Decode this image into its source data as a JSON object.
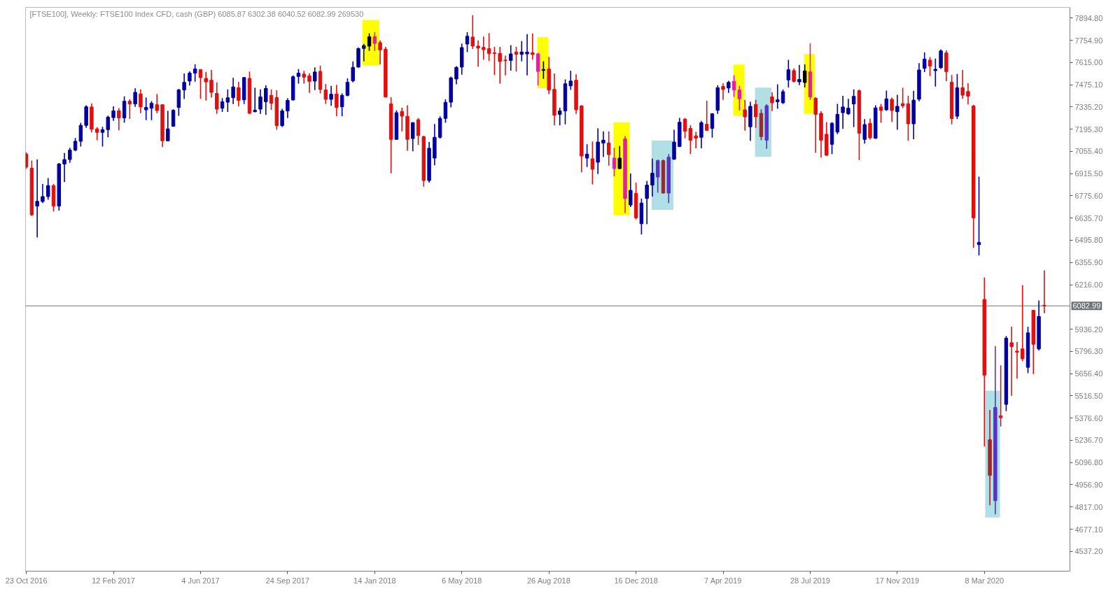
{
  "chart_data": {
    "type": "candlestick",
    "title": "[FTSE100], Weekly:  FTSE100 Index CFD, cash (GBP)  6085.87 6302.38 6040.52 6082.99  269530",
    "x": [
      "2016-10-23",
      "2016-10-30",
      "2016-11-06",
      "2016-11-13",
      "2016-11-20",
      "2016-11-27",
      "2016-12-04",
      "2016-12-11",
      "2016-12-18",
      "2016-12-25",
      "2017-01-01",
      "2017-01-08",
      "2017-01-15",
      "2017-01-22",
      "2017-01-29",
      "2017-02-05",
      "2017-02-12",
      "2017-02-19",
      "2017-02-26",
      "2017-03-05",
      "2017-03-12",
      "2017-03-19",
      "2017-03-26",
      "2017-04-02",
      "2017-04-09",
      "2017-04-16",
      "2017-04-23",
      "2017-04-30",
      "2017-05-07",
      "2017-05-14",
      "2017-05-21",
      "2017-05-28",
      "2017-06-04",
      "2017-06-11",
      "2017-06-18",
      "2017-06-25",
      "2017-07-02",
      "2017-07-09",
      "2017-07-16",
      "2017-07-23",
      "2017-07-30",
      "2017-08-06",
      "2017-08-13",
      "2017-08-20",
      "2017-08-27",
      "2017-09-03",
      "2017-09-10",
      "2017-09-17",
      "2017-09-24",
      "2017-10-01",
      "2017-10-08",
      "2017-10-15",
      "2017-10-22",
      "2017-10-29",
      "2017-11-05",
      "2017-11-12",
      "2017-11-19",
      "2017-11-26",
      "2017-12-03",
      "2017-12-10",
      "2017-12-17",
      "2017-12-24",
      "2017-12-31",
      "2018-01-07",
      "2018-01-14",
      "2018-01-21",
      "2018-01-28",
      "2018-02-04",
      "2018-02-11",
      "2018-02-18",
      "2018-02-25",
      "2018-03-04",
      "2018-03-11",
      "2018-03-18",
      "2018-03-25",
      "2018-04-01",
      "2018-04-08",
      "2018-04-15",
      "2018-04-22",
      "2018-04-29",
      "2018-05-06",
      "2018-05-13",
      "2018-05-20",
      "2018-05-27",
      "2018-06-03",
      "2018-06-10",
      "2018-06-17",
      "2018-06-24",
      "2018-07-01",
      "2018-07-08",
      "2018-07-15",
      "2018-07-22",
      "2018-07-29",
      "2018-08-05",
      "2018-08-12",
      "2018-08-19",
      "2018-08-26",
      "2018-09-02",
      "2018-09-09",
      "2018-09-16",
      "2018-09-23",
      "2018-09-30",
      "2018-10-07",
      "2018-10-14",
      "2018-10-21",
      "2018-10-28",
      "2018-11-04",
      "2018-11-11",
      "2018-11-18",
      "2018-11-25",
      "2018-12-02",
      "2018-12-09",
      "2018-12-16",
      "2018-12-23",
      "2018-12-30",
      "2019-01-06",
      "2019-01-13",
      "2019-01-20",
      "2019-01-27",
      "2019-02-03",
      "2019-02-10",
      "2019-02-17",
      "2019-02-24",
      "2019-03-03",
      "2019-03-10",
      "2019-03-17",
      "2019-03-24",
      "2019-03-31",
      "2019-04-07",
      "2019-04-14",
      "2019-04-21",
      "2019-04-28",
      "2019-05-05",
      "2019-05-12",
      "2019-05-19",
      "2019-05-26",
      "2019-06-02",
      "2019-06-09",
      "2019-06-16",
      "2019-06-23",
      "2019-06-30",
      "2019-07-07",
      "2019-07-14",
      "2019-07-21",
      "2019-07-28",
      "2019-08-04",
      "2019-08-11",
      "2019-08-18",
      "2019-08-25",
      "2019-09-01",
      "2019-09-08",
      "2019-09-15",
      "2019-09-22",
      "2019-09-29",
      "2019-10-06",
      "2019-10-13",
      "2019-10-20",
      "2019-10-27",
      "2019-11-03",
      "2019-11-10",
      "2019-11-17",
      "2019-11-24",
      "2019-12-01",
      "2019-12-08",
      "2019-12-15",
      "2019-12-22",
      "2019-12-29",
      "2020-01-05",
      "2020-01-12",
      "2020-01-19",
      "2020-01-26",
      "2020-02-02",
      "2020-02-09",
      "2020-02-16",
      "2020-02-23",
      "2020-03-01",
      "2020-03-08",
      "2020-03-15",
      "2020-03-22",
      "2020-03-29",
      "2020-04-05",
      "2020-04-12",
      "2020-04-19",
      "2020-04-26",
      "2020-05-03",
      "2020-05-10",
      "2020-05-17",
      "2020-05-24"
    ],
    "ohlc": [
      [
        7038,
        7045,
        6950,
        6957
      ],
      [
        6950,
        6994,
        6652,
        6656
      ],
      [
        6711,
        7001,
        6517,
        6741
      ],
      [
        6740,
        6847,
        6734,
        6771
      ],
      [
        6771,
        6884,
        6755,
        6840
      ],
      [
        6840,
        6847,
        6681,
        6711
      ],
      [
        6711,
        6979,
        6686,
        6976
      ],
      [
        6976,
        7042,
        6866,
        7004
      ],
      [
        7004,
        7075,
        6987,
        7064
      ],
      [
        7064,
        7136,
        7060,
        7119
      ],
      [
        7119,
        7232,
        7089,
        7219
      ],
      [
        7219,
        7342,
        7207,
        7336
      ],
      [
        7335,
        7354,
        7178,
        7195
      ],
      [
        7197,
        7204,
        7129,
        7175
      ],
      [
        7175,
        7207,
        7089,
        7192
      ],
      [
        7192,
        7277,
        7148,
        7271
      ],
      [
        7268,
        7335,
        7251,
        7310
      ],
      [
        7310,
        7324,
        7192,
        7266
      ],
      [
        7266,
        7398,
        7239,
        7371
      ],
      [
        7371,
        7380,
        7263,
        7354
      ],
      [
        7354,
        7449,
        7339,
        7427
      ],
      [
        7417,
        7442,
        7299,
        7336
      ],
      [
        7317,
        7390,
        7255,
        7332
      ],
      [
        7327,
        7368,
        7255,
        7358
      ],
      [
        7349,
        7412,
        7299,
        7313
      ],
      [
        7349,
        7349,
        7086,
        7122
      ],
      [
        7122,
        7307,
        7122,
        7197
      ],
      [
        7214,
        7317,
        7214,
        7314
      ],
      [
        7332,
        7446,
        7283,
        7442
      ],
      [
        7442,
        7542,
        7389,
        7490
      ],
      [
        7498,
        7556,
        7474,
        7548
      ],
      [
        7548,
        7600,
        7498,
        7574
      ],
      [
        7570,
        7570,
        7390,
        7520
      ],
      [
        7515,
        7552,
        7379,
        7493
      ],
      [
        7503,
        7564,
        7398,
        7427
      ],
      [
        7420,
        7486,
        7295,
        7321
      ],
      [
        7327,
        7387,
        7307,
        7368
      ],
      [
        7365,
        7442,
        7307,
        7393
      ],
      [
        7393,
        7515,
        7357,
        7461
      ],
      [
        7456,
        7490,
        7342,
        7376
      ],
      [
        7380,
        7520,
        7357,
        7520
      ],
      [
        7515,
        7555,
        7295,
        7295
      ],
      [
        7305,
        7452,
        7305,
        7314
      ],
      [
        7321,
        7442,
        7295,
        7398
      ],
      [
        7368,
        7467,
        7288,
        7452
      ],
      [
        7408,
        7442,
        7321,
        7358
      ],
      [
        7395,
        7437,
        7195,
        7217
      ],
      [
        7217,
        7320,
        7213,
        7310
      ],
      [
        7310,
        7386,
        7269,
        7376
      ],
      [
        7379,
        7530,
        7379,
        7525
      ],
      [
        7527,
        7570,
        7486,
        7548
      ],
      [
        7542,
        7559,
        7486,
        7523
      ],
      [
        7530,
        7545,
        7427,
        7496
      ],
      [
        7498,
        7581,
        7445,
        7555
      ],
      [
        7559,
        7592,
        7424,
        7445
      ],
      [
        7442,
        7476,
        7357,
        7383
      ],
      [
        7383,
        7464,
        7346,
        7415
      ],
      [
        7417,
        7471,
        7280,
        7332
      ],
      [
        7336,
        7417,
        7280,
        7408
      ],
      [
        7408,
        7511,
        7405,
        7490
      ],
      [
        7500,
        7618,
        7493,
        7584
      ],
      [
        7586,
        7706,
        7586,
        7702
      ],
      [
        7703,
        7728,
        7625,
        7721
      ],
      [
        7718,
        7794,
        7691,
        7777
      ],
      [
        7777,
        7802,
        7691,
        7735
      ],
      [
        7740,
        7750,
        7606,
        7694
      ],
      [
        7699,
        7710,
        7398,
        7398
      ],
      [
        7354,
        7393,
        6921,
        7131
      ],
      [
        7131,
        7310,
        7131,
        7299
      ],
      [
        7307,
        7327,
        7185,
        7277
      ],
      [
        7276,
        7342,
        7063,
        7131
      ],
      [
        7136,
        7236,
        7060,
        7236
      ],
      [
        7255,
        7263,
        7100,
        7155
      ],
      [
        7148,
        7151,
        6837,
        6872
      ],
      [
        6872,
        7111,
        6862,
        7075
      ],
      [
        7013,
        7224,
        6972,
        7144
      ],
      [
        7144,
        7273,
        7140,
        7263
      ],
      [
        7263,
        7379,
        7239,
        7364
      ],
      [
        7365,
        7523,
        7336,
        7518
      ],
      [
        7511,
        7589,
        7481,
        7584
      ],
      [
        7586,
        7731,
        7542,
        7709
      ],
      [
        7731,
        7802,
        7684,
        7780
      ],
      [
        7775,
        7909,
        7703,
        7718
      ],
      [
        7718,
        7750,
        7592,
        7706
      ],
      [
        7710,
        7775,
        7636,
        7696
      ],
      [
        7702,
        7797,
        7628,
        7672
      ],
      [
        7675,
        7710,
        7540,
        7672
      ],
      [
        7672,
        7710,
        7486,
        7621
      ],
      [
        7630,
        7655,
        7537,
        7627
      ],
      [
        7628,
        7721,
        7567,
        7669
      ],
      [
        7681,
        7710,
        7562,
        7666
      ],
      [
        7666,
        7746,
        7625,
        7681
      ],
      [
        7669,
        7790,
        7537,
        7680
      ],
      [
        7677,
        7794,
        7636,
        7665
      ],
      [
        7669,
        7672,
        7474,
        7559
      ],
      [
        7571,
        7618,
        7515,
        7565
      ],
      [
        7574,
        7647,
        7420,
        7442
      ],
      [
        7446,
        7542,
        7224,
        7283
      ],
      [
        7288,
        7327,
        7222,
        7310
      ],
      [
        7310,
        7505,
        7229,
        7481
      ],
      [
        7468,
        7559,
        7446,
        7498
      ],
      [
        7503,
        7537,
        7295,
        7317
      ],
      [
        7342,
        7342,
        6928,
        7026
      ],
      [
        7013,
        7097,
        6960,
        7038
      ],
      [
        7009,
        7114,
        6851,
        6943
      ],
      [
        6987,
        7197,
        6916,
        7114
      ],
      [
        7108,
        7178,
        7023,
        7126
      ],
      [
        7108,
        7178,
        6969,
        7035
      ],
      [
        7013,
        7075,
        6902,
        6947
      ],
      [
        6947,
        7085,
        6947,
        7013
      ],
      [
        7133,
        7148,
        6671,
        6759
      ],
      [
        6718,
        6913,
        6708,
        6810
      ],
      [
        6791,
        6855,
        6630,
        6637
      ],
      [
        6600,
        6755,
        6536,
        6730
      ],
      [
        6759,
        6865,
        6600,
        6843
      ],
      [
        6843,
        7006,
        6774,
        6918
      ],
      [
        6894,
        7001,
        6799,
        6997
      ],
      [
        6997,
        7001,
        6793,
        6793
      ],
      [
        6793,
        7035,
        6733,
        7019
      ],
      [
        7006,
        7188,
        7006,
        7114
      ],
      [
        7086,
        7263,
        7086,
        7239
      ],
      [
        7258,
        7263,
        7141,
        7182
      ],
      [
        7200,
        7217,
        7042,
        7126
      ],
      [
        7153,
        7175,
        7078,
        7138
      ],
      [
        7144,
        7244,
        7078,
        7236
      ],
      [
        7226,
        7371,
        7188,
        7188
      ],
      [
        7200,
        7292,
        7145,
        7292
      ],
      [
        7314,
        7467,
        7295,
        7456
      ],
      [
        7464,
        7481,
        7383,
        7445
      ],
      [
        7454,
        7496,
        7427,
        7490
      ],
      [
        7496,
        7530,
        7402,
        7442
      ],
      [
        7442,
        7464,
        7317,
        7386
      ],
      [
        7317,
        7376,
        7189,
        7273
      ],
      [
        7210,
        7364,
        7126,
        7339
      ],
      [
        7351,
        7376,
        7207,
        7273
      ],
      [
        7295,
        7317,
        7129,
        7148
      ],
      [
        7126,
        7349,
        7075,
        7343
      ],
      [
        7398,
        7424,
        7313,
        7361
      ],
      [
        7368,
        7474,
        7327,
        7380
      ],
      [
        7361,
        7442,
        7358,
        7431
      ],
      [
        7505,
        7628,
        7461,
        7569
      ],
      [
        7564,
        7574,
        7493,
        7496
      ],
      [
        7493,
        7596,
        7476,
        7508
      ],
      [
        7489,
        7600,
        7461,
        7562
      ],
      [
        7556,
        7733,
        7383,
        7398
      ],
      [
        7390,
        7393,
        7050,
        7288
      ],
      [
        7295,
        7305,
        7020,
        7126
      ],
      [
        7163,
        7236,
        7031,
        7031
      ],
      [
        7100,
        7236,
        7042,
        7232
      ],
      [
        7177,
        7351,
        7167,
        7288
      ],
      [
        7299,
        7401,
        7200,
        7335
      ],
      [
        7292,
        7383,
        7288,
        7327
      ],
      [
        7354,
        7442,
        7211,
        7402
      ],
      [
        7437,
        7442,
        7004,
        7170
      ],
      [
        7131,
        7255,
        7108,
        7224
      ],
      [
        7232,
        7258,
        7133,
        7141
      ],
      [
        7138,
        7342,
        7138,
        7329
      ],
      [
        7335,
        7351,
        7239,
        7313
      ],
      [
        7317,
        7434,
        7314,
        7386
      ],
      [
        7383,
        7390,
        7244,
        7313
      ],
      [
        7305,
        7408,
        7195,
        7339
      ],
      [
        7356,
        7452,
        7332,
        7342
      ],
      [
        7355,
        7403,
        7126,
        7229
      ],
      [
        7229,
        7432,
        7135,
        7378
      ],
      [
        7384,
        7607,
        7374,
        7568
      ],
      [
        7578,
        7675,
        7558,
        7636
      ],
      [
        7630,
        7646,
        7533,
        7593
      ],
      [
        7564,
        7636,
        7467,
        7572
      ],
      [
        7582,
        7694,
        7578,
        7688
      ],
      [
        7675,
        7688,
        7500,
        7558
      ],
      [
        7491,
        7533,
        7229,
        7262
      ],
      [
        7277,
        7539,
        7262,
        7456
      ],
      [
        7456,
        7564,
        7390,
        7409
      ],
      [
        7432,
        7481,
        7355,
        7403
      ],
      [
        7341,
        7345,
        6452,
        6637
      ],
      [
        6468,
        6893,
        6404,
        6482
      ],
      [
        6123,
        6258,
        5201,
        5647
      ],
      [
        5240,
        5424,
        4832,
        5016
      ],
      [
        4857,
        5826,
        4774,
        5443
      ],
      [
        5391,
        5705,
        5327,
        5379
      ],
      [
        5463,
        5890,
        5424,
        5880
      ],
      [
        5851,
        5948,
        5521,
        5826
      ],
      [
        5798,
        5851,
        5628,
        5791
      ],
      [
        5812,
        6210,
        5738,
        5750
      ],
      [
        5696,
        5948,
        5663,
        5913
      ],
      [
        6055,
        6055,
        5657,
        5841
      ],
      [
        5812,
        6113,
        5806,
        6016
      ],
      [
        6085.87,
        6302.38,
        6040.52,
        6082.99
      ]
    ],
    "colors": [
      "#e01010",
      "#e01010",
      "#0000a0",
      "#0000a0",
      "#0000a0",
      "#e01010",
      "#0000a0",
      "#0000a0",
      "#0000a0",
      "#0000a0",
      "#0000a0",
      "#0000a0",
      "#e01010",
      "#e01010",
      "#0000a0",
      "#0000a0",
      "#0000a0",
      "#e01010",
      "#0000a0",
      "#e01010",
      "#0000a0",
      "#e01010",
      "#0000a0",
      "#0000a0",
      "#e01010",
      "#e01010",
      "#0000a0",
      "#0000a0",
      "#0000a0",
      "#0000a0",
      "#0000a0",
      "#0000a0",
      "#e01010",
      "#e01010",
      "#e01010",
      "#e01010",
      "#0000a0",
      "#0000a0",
      "#0000a0",
      "#e01010",
      "#0000a0",
      "#e01010",
      "#0000a0",
      "#0000a0",
      "#0000a0",
      "#e01010",
      "#e01010",
      "#0000a0",
      "#0000a0",
      "#0000a0",
      "#0000a0",
      "#e01010",
      "#e01010",
      "#0000a0",
      "#e01010",
      "#e01010",
      "#0000a0",
      "#e01010",
      "#0000a0",
      "#0000a0",
      "#0000a0",
      "#0000a0",
      "#0000a0",
      "#000000",
      "#e020a0",
      "#e01010",
      "#e01010",
      "#e01010",
      "#0000a0",
      "#e01010",
      "#e01010",
      "#0000a0",
      "#e01010",
      "#e01010",
      "#0000a0",
      "#0000a0",
      "#0000a0",
      "#0000a0",
      "#0000a0",
      "#0000a0",
      "#0000a0",
      "#0000a0",
      "#e01010",
      "#e01010",
      "#e01010",
      "#e01010",
      "#e01010",
      "#e01010",
      "#e01010",
      "#0000a0",
      "#e01010",
      "#0000a0",
      "#0000a0",
      "#e01010",
      "#e020a0",
      "#000000",
      "#e01010",
      "#e01010",
      "#0000a0",
      "#0000a0",
      "#0000a0",
      "#e01010",
      "#e01010",
      "#0000a0",
      "#e01010",
      "#0000a0",
      "#0000a0",
      "#e01010",
      "#e020a0",
      "#000000",
      "#e020a0",
      "#0000a0",
      "#e01010",
      "#0000a0",
      "#0000a0",
      "#0000a0",
      "#5a32c8",
      "#a02828",
      "#5a32c8",
      "#0000a0",
      "#0000a0",
      "#e01010",
      "#e01010",
      "#e01010",
      "#0000a0",
      "#e01010",
      "#0000a0",
      "#0000a0",
      "#e01010",
      "#0000a0",
      "#e020a0",
      "#e020a0",
      "#e01010",
      "#0000a0",
      "#e01010",
      "#a02828",
      "#5a32c8",
      "#e01010",
      "#0000a0",
      "#0000a0",
      "#0000a0",
      "#e01010",
      "#0000a0",
      "#000000",
      "#e020a0",
      "#e01010",
      "#e01010",
      "#e01010",
      "#0000a0",
      "#0000a0",
      "#0000a0",
      "#0000a0",
      "#0000a0",
      "#e01010",
      "#0000a0",
      "#e01010",
      "#0000a0",
      "#e01010",
      "#0000a0",
      "#e01010",
      "#0000a0",
      "#e01010",
      "#e01010",
      "#0000a0",
      "#0000a0",
      "#0000a0",
      "#e01010",
      "#0000a0",
      "#0000a0",
      "#e01010",
      "#e01010",
      "#0000a0",
      "#e01010",
      "#e01010",
      "#e01010",
      "#0000a0",
      "#e01010",
      "#a02828",
      "#5a32c8",
      "#e01010",
      "#0000a0",
      "#e01010",
      "#e01010",
      "#e01010",
      "#0000a0",
      "#e01010",
      "#0000a0",
      "#e01010"
    ],
    "xlim": [
      "2016-10-22",
      "2020-06-26"
    ],
    "xticks": [
      {
        "value": "2016-10-23",
        "label": "23 Oct 2016"
      },
      {
        "value": "2017-02-12",
        "label": "12 Feb 2017"
      },
      {
        "value": "2017-06-04",
        "label": "4 Jun 2017"
      },
      {
        "value": "2017-09-24",
        "label": "24 Sep 2017"
      },
      {
        "value": "2018-01-14",
        "label": "14 Jan 2018"
      },
      {
        "value": "2018-05-06",
        "label": "6 May 2018"
      },
      {
        "value": "2018-08-26",
        "label": "26 Aug 2018"
      },
      {
        "value": "2018-12-16",
        "label": "16 Dec 2018"
      },
      {
        "value": "2019-04-07",
        "label": "7 Apr 2019"
      },
      {
        "value": "2019-07-28",
        "label": "28 Jul 2019"
      },
      {
        "value": "2019-11-17",
        "label": "17 Nov 2019"
      },
      {
        "value": "2020-03-08",
        "label": "8 Mar 2020"
      }
    ],
    "ylim": [
      4413,
      7962
    ],
    "yticks": [
      {
        "value": 7894.8,
        "label": "7894.80"
      },
      {
        "value": 7754.9,
        "label": "7754.90"
      },
      {
        "value": 7615,
        "label": "7615.00"
      },
      {
        "value": 7475.1,
        "label": "7475.10"
      },
      {
        "value": 7335.2,
        "label": "7335.20"
      },
      {
        "value": 7195.3,
        "label": "7195.30"
      },
      {
        "value": 7055.4,
        "label": "7055.40"
      },
      {
        "value": 6915.5,
        "label": "6915.50"
      },
      {
        "value": 6775.6,
        "label": "6775.60"
      },
      {
        "value": 6635.7,
        "label": "6635.70"
      },
      {
        "value": 6495.8,
        "label": "6495.80"
      },
      {
        "value": 6355.9,
        "label": "6355.90"
      },
      {
        "value": 6216,
        "label": "6216.00"
      },
      {
        "value": 5936.2,
        "label": "5936.20"
      },
      {
        "value": 5796.3,
        "label": "5796.30"
      },
      {
        "value": 5656.4,
        "label": "5656.40"
      },
      {
        "value": 5516.5,
        "label": "5516.50"
      },
      {
        "value": 5376.6,
        "label": "5376.60"
      },
      {
        "value": 5236.7,
        "label": "5236.70"
      },
      {
        "value": 5096.8,
        "label": "5096.80"
      },
      {
        "value": 4956.9,
        "label": "4956.90"
      },
      {
        "value": 4817,
        "label": "4817.00"
      },
      {
        "value": 4677.1,
        "label": "4677.10"
      },
      {
        "value": 4537.2,
        "label": "4537.20"
      }
    ],
    "ref_lines": [
      {
        "axis": "y",
        "value": 6082.99,
        "label": "6082.99",
        "color": "#6e7278"
      }
    ],
    "bands": [
      {
        "axis": "x",
        "from": "2017-12-29",
        "to": "2018-01-20",
        "color": "#ffff00"
      },
      {
        "axis": "x",
        "from": "2018-08-11",
        "to": "2018-08-25",
        "color": "#ffff00"
      },
      {
        "axis": "x",
        "from": "2018-11-17",
        "to": "2018-12-08",
        "color": "#ffff00"
      },
      {
        "axis": "x",
        "from": "2019-01-05",
        "to": "2019-02-02",
        "color": "#b0dfe5"
      },
      {
        "axis": "x",
        "from": "2019-04-20",
        "to": "2019-05-04",
        "color": "#ffff00"
      },
      {
        "axis": "x",
        "from": "2019-05-18",
        "to": "2019-06-08",
        "color": "#b0dfe5"
      },
      {
        "axis": "x",
        "from": "2019-07-20",
        "to": "2019-08-03",
        "color": "#ffff00"
      },
      {
        "axis": "x",
        "from": "2020-03-09",
        "to": "2020-03-28",
        "color": "#b0dfe5"
      }
    ]
  }
}
